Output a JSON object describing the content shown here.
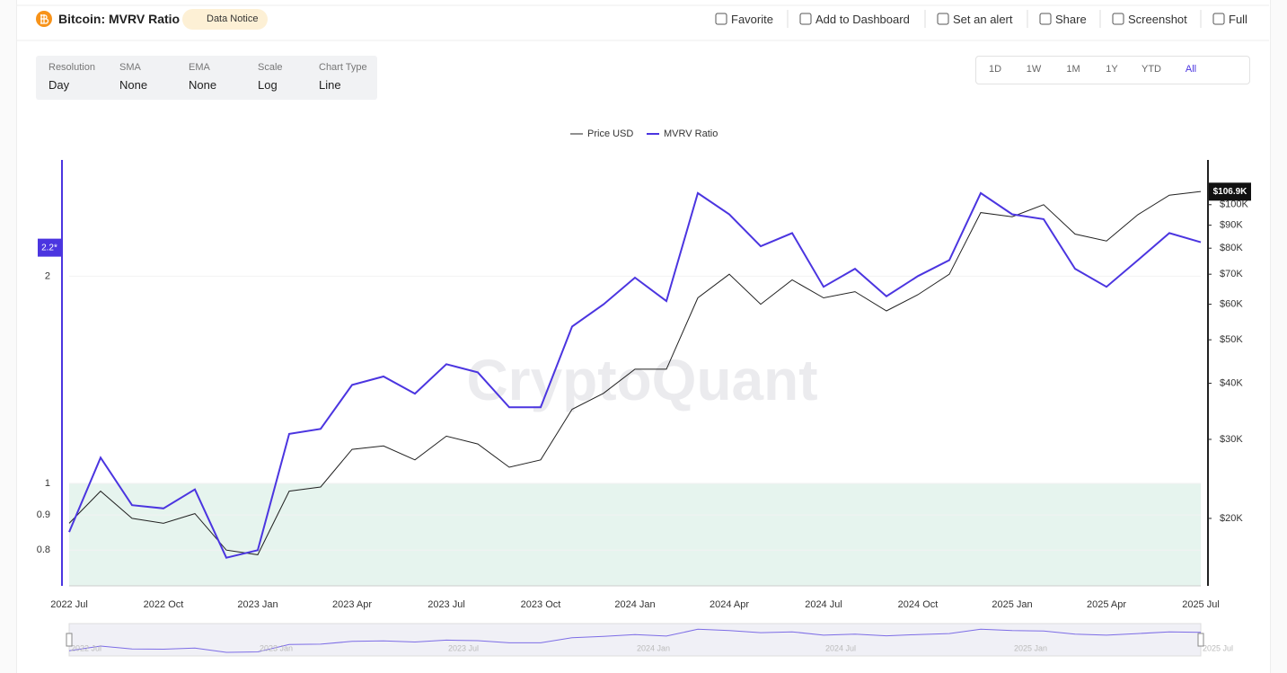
{
  "header": {
    "title": "Bitcoin: MVRV Ratio",
    "notice": "Data Notice",
    "actions": [
      "Favorite",
      "Add to Dashboard",
      "Set an alert",
      "Share",
      "Screenshot",
      "Full"
    ]
  },
  "controls": [
    {
      "label": "Resolution",
      "value": "Day"
    },
    {
      "label": "SMA",
      "value": "None"
    },
    {
      "label": "EMA",
      "value": "None"
    },
    {
      "label": "Scale",
      "value": "Log"
    },
    {
      "label": "Chart Type",
      "value": "Line"
    }
  ],
  "ranges": [
    "1D",
    "1W",
    "1M",
    "1Y",
    "YTD",
    "All"
  ],
  "active_range": "All",
  "chart_data": {
    "type": "line",
    "log_scale": true,
    "watermark": "CryptoQuant",
    "legend": "top",
    "categories": [
      "2022 Jul",
      null,
      null,
      "2022 Oct",
      null,
      null,
      "2023 Jan",
      null,
      null,
      "2023 Apr",
      null,
      null,
      "2023 Jul",
      null,
      null,
      "2023 Oct",
      null,
      null,
      "2024 Jan",
      null,
      null,
      "2024 Apr",
      null,
      null,
      "2024 Jul",
      null,
      null,
      "2024 Oct",
      null,
      null,
      "2025 Jan",
      null,
      null,
      "2025 Apr",
      null,
      null,
      "2025 Jul"
    ],
    "series": [
      {
        "name": "Price USD",
        "color": "#222222",
        "axis": "y2",
        "values": [
          19500,
          23000,
          20000,
          19500,
          20500,
          17000,
          16600,
          23000,
          23500,
          28500,
          29000,
          27000,
          30500,
          29300,
          26000,
          27000,
          35000,
          38000,
          43000,
          43000,
          62000,
          70000,
          60000,
          68000,
          62000,
          64000,
          58000,
          63000,
          70000,
          96000,
          94000,
          100000,
          86000,
          83000,
          95000,
          105000,
          107000
        ],
        "last_label": {
          "value": 106900,
          "label": "$106.9K"
        }
      },
      {
        "name": "MVRV Ratio",
        "color": "#4b35e0",
        "values": [
          0.85,
          1.09,
          0.93,
          0.92,
          0.98,
          0.78,
          0.8,
          1.18,
          1.2,
          1.39,
          1.43,
          1.35,
          1.49,
          1.45,
          1.29,
          1.29,
          1.69,
          1.82,
          1.99,
          1.84,
          2.64,
          2.46,
          2.21,
          2.31,
          1.93,
          2.05,
          1.87,
          2.0,
          2.11,
          2.64,
          2.46,
          2.42,
          2.05,
          1.93,
          2.11,
          2.31,
          2.24
        ],
        "last_label": {
          "value": 2.2,
          "label": "2.2*"
        }
      }
    ],
    "ylim": [
      0.71,
      2.95
    ],
    "yticks": [
      0.8,
      0.9,
      1,
      2
    ],
    "y2lim": [
      14150,
      125800
    ],
    "y2ticks": [
      {
        "value": 20000,
        "label": "$20K"
      },
      {
        "value": 30000,
        "label": "$30K"
      },
      {
        "value": 40000,
        "label": "$40K"
      },
      {
        "value": 50000,
        "label": "$50K"
      },
      {
        "value": 60000,
        "label": "$60K"
      },
      {
        "value": 70000,
        "label": "$70K"
      },
      {
        "value": 80000,
        "label": "$80K"
      },
      {
        "value": 90000,
        "label": "$90K"
      },
      {
        "value": 100000,
        "label": "$100K"
      }
    ],
    "highlight_below": 1,
    "grid": true
  }
}
